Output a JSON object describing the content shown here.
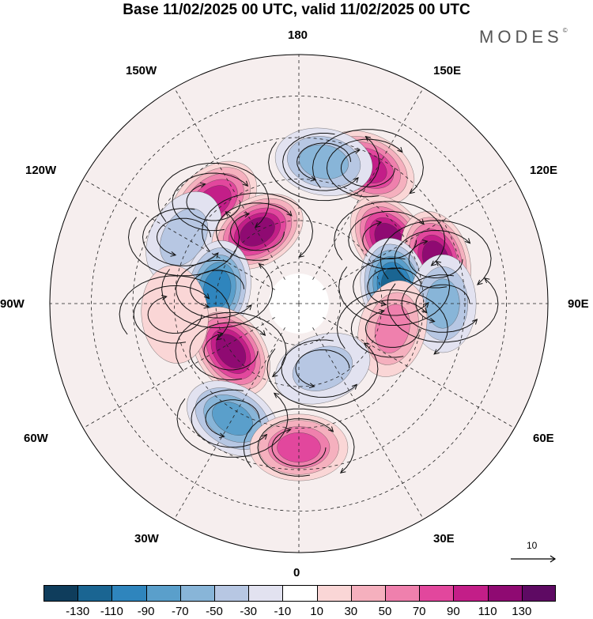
{
  "title": "Base 11/02/2025 00 UTC, valid 11/02/2025 00 UTC",
  "brand": "MODES",
  "brand_mark": "©",
  "longitude_labels": {
    "top": "180",
    "bottom": "0",
    "left": "90W",
    "right": "90E",
    "upper_left_1": "150W",
    "upper_left_2": "120W",
    "upper_right_1": "150E",
    "upper_right_2": "120E",
    "lower_left_1": "60W",
    "lower_left_2": "30W",
    "lower_right_1": "60E",
    "lower_right_2": "30E"
  },
  "vector_scale_label": "10",
  "colorbar": {
    "colors": [
      "#0f3d5c",
      "#1a6592",
      "#2f85bd",
      "#5a9fcb",
      "#88b5d8",
      "#b7c7e3",
      "#e2e2f0",
      "#ffffff",
      "#fad6d6",
      "#f5b0be",
      "#ef80ad",
      "#e2479d",
      "#c31e88",
      "#8f0a72",
      "#5e0a63"
    ],
    "ticks": [
      "-130",
      "-110",
      "-90",
      "-70",
      "-50",
      "-30",
      "-10",
      "10",
      "30",
      "50",
      "70",
      "90",
      "110",
      "130"
    ]
  },
  "anomalies": [
    {
      "lon": 153,
      "colat": 55,
      "value": 105
    },
    {
      "lon": 170,
      "colat": 52,
      "value": -60
    },
    {
      "lon": -140,
      "colat": 48,
      "value": 110
    },
    {
      "lon": -120,
      "colat": 48,
      "value": -40
    },
    {
      "lon": -150,
      "colat": 30,
      "value": 125
    },
    {
      "lon": 125,
      "colat": 40,
      "value": 130
    },
    {
      "lon": 108,
      "colat": 52,
      "value": 125
    },
    {
      "lon": 100,
      "colat": 35,
      "value": -120
    },
    {
      "lon": 90,
      "colat": 52,
      "value": -70
    },
    {
      "lon": -100,
      "colat": 30,
      "value": -110
    },
    {
      "lon": 75,
      "colat": 35,
      "value": 70
    },
    {
      "lon": -55,
      "colat": 30,
      "value": 120
    },
    {
      "lon": -30,
      "colat": 48,
      "value": -90
    },
    {
      "lon": 0,
      "colat": 52,
      "value": 80
    },
    {
      "lon": 20,
      "colat": 25,
      "value": -40
    },
    {
      "lon": -85,
      "colat": 45,
      "value": 30
    }
  ]
}
